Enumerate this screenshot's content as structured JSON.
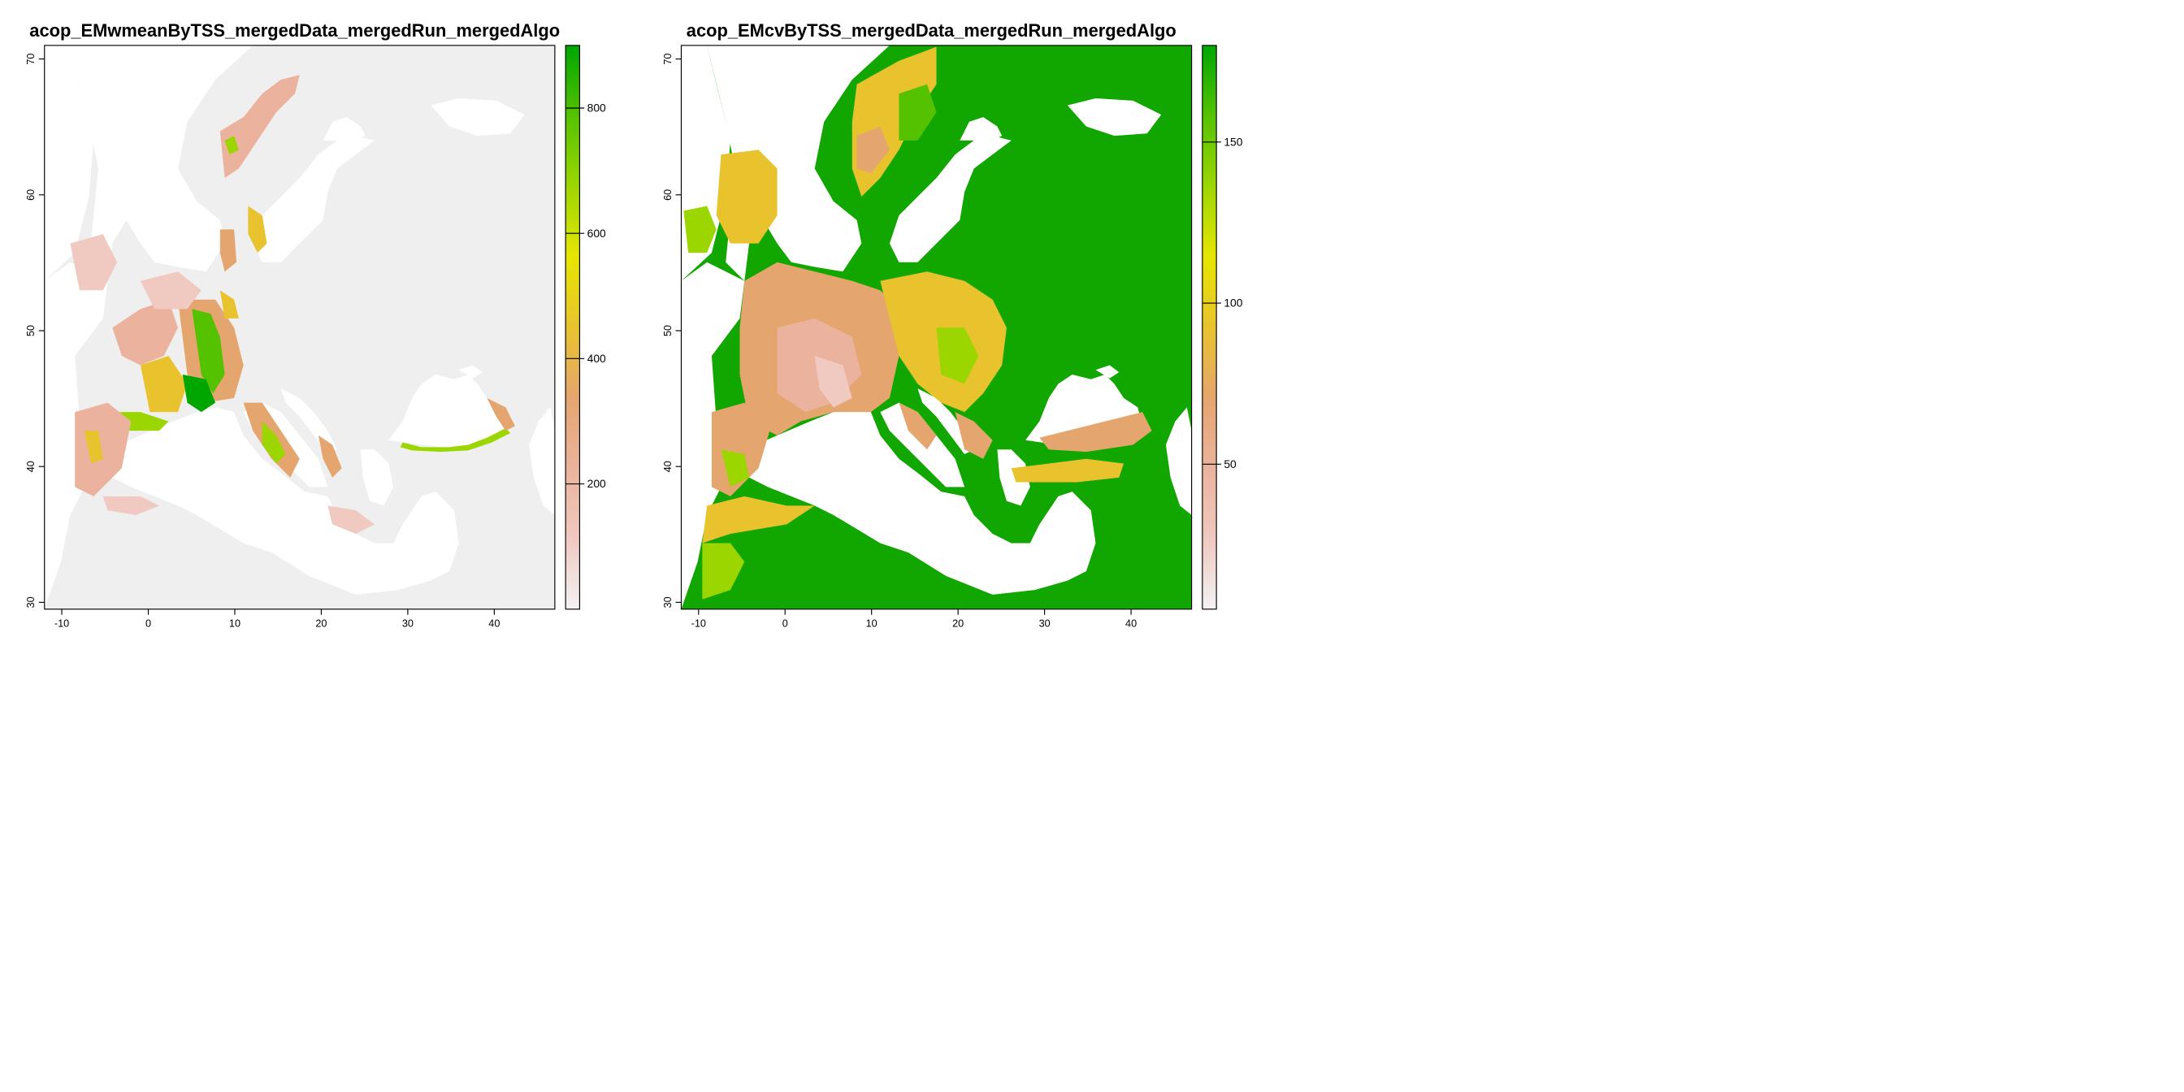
{
  "panels": [
    {
      "id": "wmean",
      "title": "acop_EMwmeanByTSS_mergedData_mergedRun_mergedAlgo",
      "x_ticks": [
        -10,
        0,
        10,
        20,
        30,
        40
      ],
      "y_ticks": [
        30,
        40,
        50,
        60,
        70
      ],
      "xlim": [
        -12,
        47
      ],
      "ylim": [
        29.5,
        71
      ],
      "legend": {
        "range": [
          0,
          900
        ],
        "ticks": [
          200,
          400,
          600,
          800
        ],
        "colors": [
          "#f2f2f2",
          "#f0c9c0",
          "#ebb39d",
          "#e5a56e",
          "#e8c32e",
          "#e6e600",
          "#9cd600",
          "#55c200",
          "#00a600"
        ]
      },
      "background_color": "#efefef"
    },
    {
      "id": "cv",
      "title": "acop_EMcvByTSS_mergedData_mergedRun_mergedAlgo",
      "x_ticks": [
        -10,
        0,
        10,
        20,
        30,
        40
      ],
      "y_ticks": [
        30,
        40,
        50,
        60,
        70
      ],
      "xlim": [
        -12,
        47
      ],
      "ylim": [
        29.5,
        71
      ],
      "legend": {
        "range": [
          5,
          180
        ],
        "ticks": [
          50,
          100,
          150
        ],
        "colors": [
          "#f2f2f2",
          "#f0c9c0",
          "#ebb39d",
          "#e5a56e",
          "#e8c32e",
          "#e6e600",
          "#9cd600",
          "#55c200",
          "#00a600"
        ]
      },
      "background_color": "#12a600"
    }
  ]
}
